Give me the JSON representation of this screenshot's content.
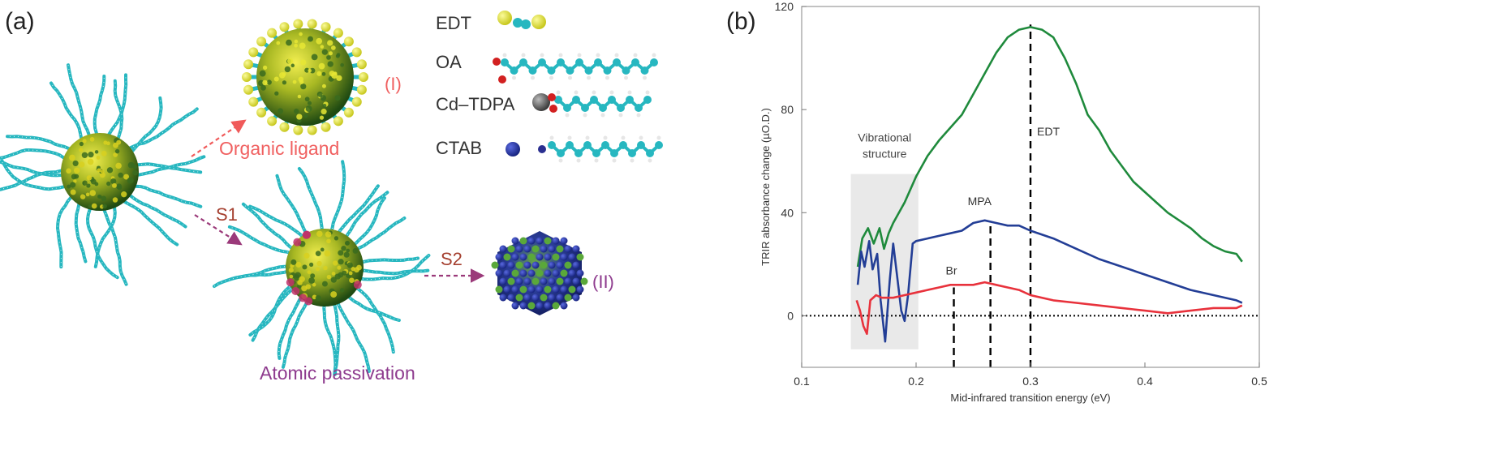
{
  "panel_a": {
    "label": "(a)",
    "route_labels": {
      "s1": "S1",
      "s2": "S2"
    },
    "product_labels": {
      "organic": "Organic ligand",
      "atomic": "Atomic passivation"
    },
    "roman_labels": {
      "one": "(I)",
      "two": "(II)"
    },
    "ligands": [
      "EDT",
      "OA",
      "Cd–TDPA",
      "CTAB"
    ],
    "colors": {
      "arrow_red": "#f05a5a",
      "arrow_purple": "#9b3a7a",
      "label_red": "#f06060",
      "label_purple": "#8e3b8e",
      "s_label": "#a54030",
      "chain": "#27b7c0",
      "core_green": "#3a6b1e",
      "core_yellow": "#d8d020",
      "sulfur": "#e6e634",
      "oxygen": "#d22020",
      "cadmium": "#555555",
      "bromide": "#1a2a8a"
    }
  },
  "panel_b": {
    "label": "(b)",
    "chart_data": {
      "type": "line",
      "xlabel": "Mid-infrared transition energy (eV)",
      "ylabel": "TRIR absorbance change (µO.D.)",
      "xlim": [
        0.1,
        0.5
      ],
      "ylim": [
        -20,
        120
      ],
      "xticks": [
        "0.1",
        "0.2",
        "0.3",
        "0.4",
        "0.5"
      ],
      "yticks": [
        "0",
        "40",
        "80",
        "120"
      ],
      "grid": false,
      "annotations": [
        {
          "text": "Vibrational structure",
          "lines": [
            "Vibrational",
            "structure"
          ],
          "x_range": [
            0.143,
            0.202
          ],
          "y_range": [
            -13,
            55
          ]
        },
        {
          "text": "EDT",
          "x": 0.3
        },
        {
          "text": "MPA",
          "x": 0.265
        },
        {
          "text": "Br",
          "x": 0.233
        }
      ],
      "series": [
        {
          "name": "EDT",
          "color": "#1f8a3c",
          "x": [
            0.149,
            0.153,
            0.158,
            0.163,
            0.168,
            0.172,
            0.176,
            0.18,
            0.19,
            0.2,
            0.21,
            0.22,
            0.23,
            0.24,
            0.25,
            0.26,
            0.27,
            0.28,
            0.29,
            0.3,
            0.31,
            0.32,
            0.33,
            0.34,
            0.35,
            0.36,
            0.37,
            0.38,
            0.39,
            0.4,
            0.41,
            0.42,
            0.43,
            0.44,
            0.45,
            0.46,
            0.47,
            0.48,
            0.485
          ],
          "y": [
            19,
            30,
            34,
            28,
            34,
            26,
            32,
            36,
            44,
            54,
            62,
            68,
            73,
            78,
            86,
            94,
            102,
            108,
            111,
            112,
            111,
            108,
            100,
            90,
            78,
            72,
            64,
            58,
            52,
            48,
            44,
            40,
            37,
            34,
            30,
            27,
            25,
            24,
            21
          ]
        },
        {
          "name": "MPA",
          "color": "#233e96",
          "x": [
            0.149,
            0.152,
            0.155,
            0.159,
            0.162,
            0.166,
            0.169,
            0.173,
            0.177,
            0.18,
            0.183,
            0.187,
            0.19,
            0.193,
            0.197,
            0.2,
            0.21,
            0.22,
            0.23,
            0.24,
            0.25,
            0.26,
            0.27,
            0.28,
            0.29,
            0.3,
            0.32,
            0.34,
            0.36,
            0.38,
            0.4,
            0.42,
            0.44,
            0.46,
            0.48,
            0.485
          ],
          "y": [
            12,
            25,
            19,
            29,
            18,
            24,
            6,
            -10,
            14,
            28,
            17,
            2,
            -2,
            8,
            28,
            29,
            30,
            31,
            32,
            33,
            36,
            37,
            36,
            35,
            35,
            33,
            30,
            26,
            22,
            19,
            16,
            13,
            10,
            8,
            6,
            5
          ]
        },
        {
          "name": "Br",
          "color": "#e8323c",
          "x": [
            0.148,
            0.151,
            0.154,
            0.157,
            0.16,
            0.165,
            0.17,
            0.18,
            0.19,
            0.2,
            0.21,
            0.22,
            0.23,
            0.24,
            0.25,
            0.26,
            0.27,
            0.28,
            0.29,
            0.3,
            0.32,
            0.34,
            0.36,
            0.38,
            0.4,
            0.42,
            0.44,
            0.46,
            0.48,
            0.485
          ],
          "y": [
            6,
            2,
            -4,
            -7,
            6,
            8,
            7,
            7,
            8,
            9,
            10,
            11,
            12,
            12,
            12,
            13,
            12,
            11,
            10,
            8,
            6,
            5,
            4,
            3,
            2,
            1,
            2,
            3,
            3,
            4
          ]
        }
      ],
      "reference_lines": [
        {
          "type": "horizontal",
          "y": 0,
          "style": "dotted",
          "color": "#000000"
        },
        {
          "type": "vertical",
          "x": 0.3,
          "label": "EDT",
          "style": "dashed",
          "color": "#000000",
          "y_top": 113
        },
        {
          "type": "vertical",
          "x": 0.265,
          "label": "MPA",
          "style": "dashed",
          "color": "#000000",
          "y_top": 36
        },
        {
          "type": "vertical",
          "x": 0.233,
          "label": "Br",
          "style": "dashed",
          "color": "#000000",
          "y_top": 11
        }
      ]
    }
  }
}
